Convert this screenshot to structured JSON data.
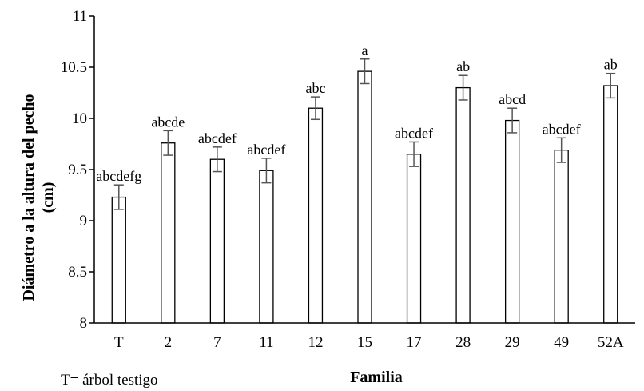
{
  "chart_data": {
    "type": "bar",
    "title": "",
    "xlabel": "Familia",
    "ylabel_line1": "Diámetro a la altura del pecho",
    "ylabel_line2": "(cm)",
    "ylim": [
      8,
      11
    ],
    "yticks": [
      "8",
      "8.5",
      "9",
      "9.5",
      "10",
      "10.5",
      "11"
    ],
    "grid": false,
    "categories": [
      "T",
      "2",
      "7",
      "11",
      "12",
      "15",
      "17",
      "28",
      "29",
      "49",
      "52A"
    ],
    "values": [
      9.23,
      9.76,
      9.6,
      9.49,
      10.1,
      10.46,
      9.65,
      10.3,
      9.98,
      9.69,
      10.32
    ],
    "errors": [
      0.12,
      0.12,
      0.12,
      0.12,
      0.11,
      0.12,
      0.12,
      0.12,
      0.12,
      0.12,
      0.12
    ],
    "significance_labels": [
      "abcdefg",
      "abcde",
      "abcdef",
      "abcdef",
      "abc",
      "a",
      "abcdef",
      "ab",
      "abcd",
      "abcdef",
      "ab"
    ],
    "bar_fill": "#ffffff",
    "bar_stroke": "#000000",
    "error_bar_color": "#555555"
  },
  "footnote": "T= árbol testigo"
}
